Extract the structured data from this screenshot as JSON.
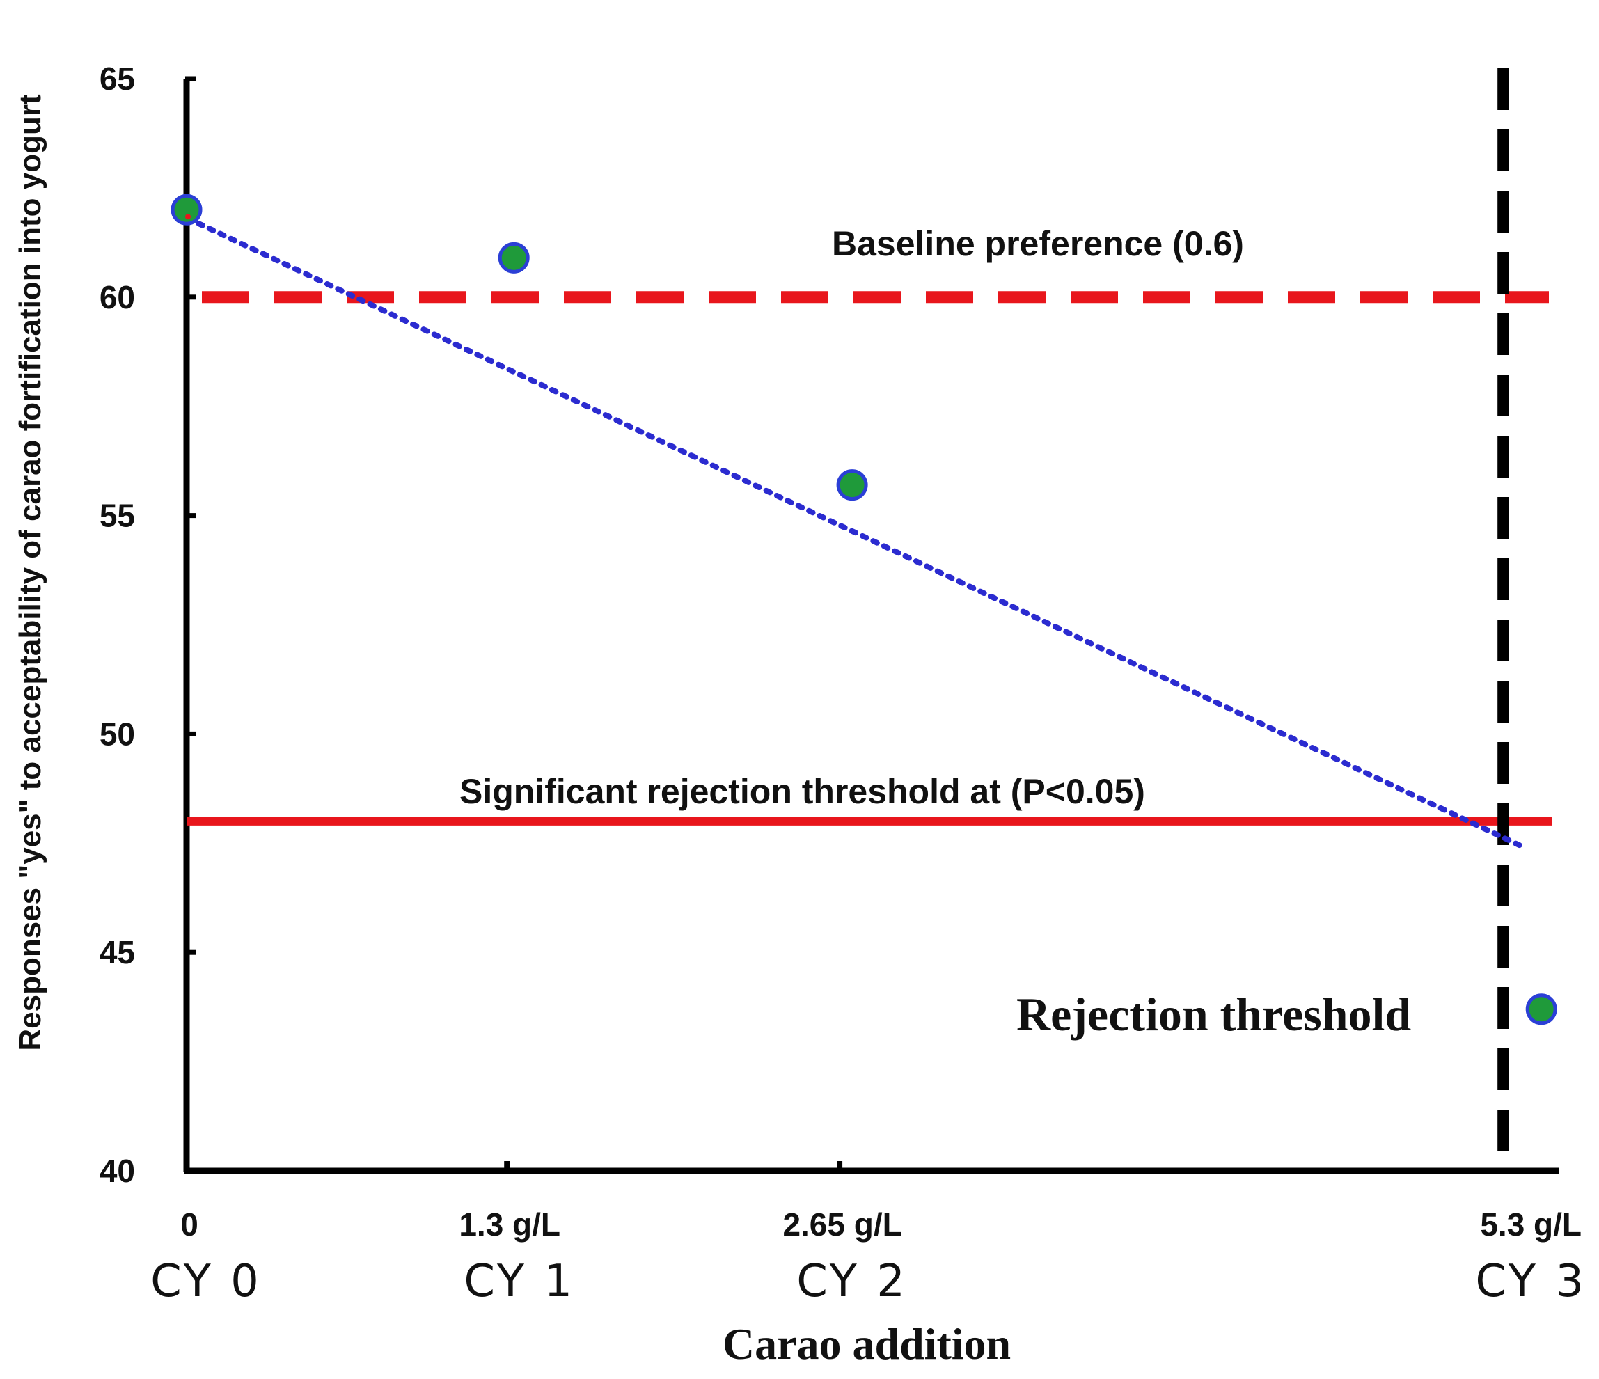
{
  "chart_data": {
    "type": "scatter",
    "title": "",
    "xlabel": "Carao addition",
    "ylabel": "Responses \"yes\" to acceptability of carao fortification into yogurt",
    "ylim": [
      40,
      65
    ],
    "yticks": [
      40,
      45,
      50,
      55,
      60,
      65
    ],
    "categories": [
      {
        "amount": "0",
        "code": "CY 0"
      },
      {
        "amount": "1.3 g/L",
        "code": "CY 1"
      },
      {
        "amount": "2.65 g/L",
        "code": "CY 2"
      },
      {
        "amount": "5.3 g/L",
        "code": "CY 3"
      }
    ],
    "points": [
      {
        "x": 0,
        "y": 62
      },
      {
        "x": 1.3,
        "y": 60.9
      },
      {
        "x": 2.65,
        "y": 55.7
      },
      {
        "x": 5.3,
        "y": 43.7
      }
    ],
    "trendline": {
      "x": [
        0,
        5.3
      ],
      "y": [
        61.8,
        47.4
      ]
    },
    "baseline": {
      "y": 60,
      "label": "Baseline preference (0.6)"
    },
    "significance": {
      "y": 48,
      "label": "Significant rejection threshold at (P<0.05)"
    },
    "rejection_line": {
      "x": 5.3,
      "label": "Rejection threshold"
    },
    "colors": {
      "point_fill": "#1f9a3a",
      "point_stroke": "#2b3fd6",
      "trend": "#2b2bd0",
      "baseline": "#e8161c",
      "significance": "#e8161c",
      "rejection": "#000000",
      "axis": "#000000"
    }
  }
}
